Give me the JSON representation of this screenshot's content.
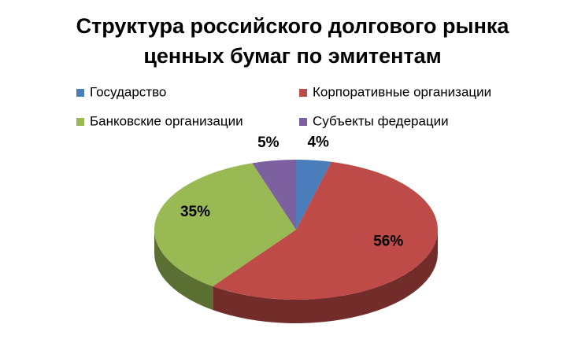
{
  "chart_data": {
    "type": "pie",
    "title": "Структура российского долгового рынка ценных бумаг по эмитентам",
    "categories": [
      "Государство",
      "Корпоративные организации",
      "Банковские организации",
      "Субъекты федерации"
    ],
    "values": [
      4,
      56,
      35,
      5
    ],
    "value_labels": [
      "4%",
      "56%",
      "35%",
      "5%"
    ],
    "colors": [
      "#4a7ebb",
      "#be4b48",
      "#98b954",
      "#7d60a0"
    ],
    "legend": "top"
  }
}
